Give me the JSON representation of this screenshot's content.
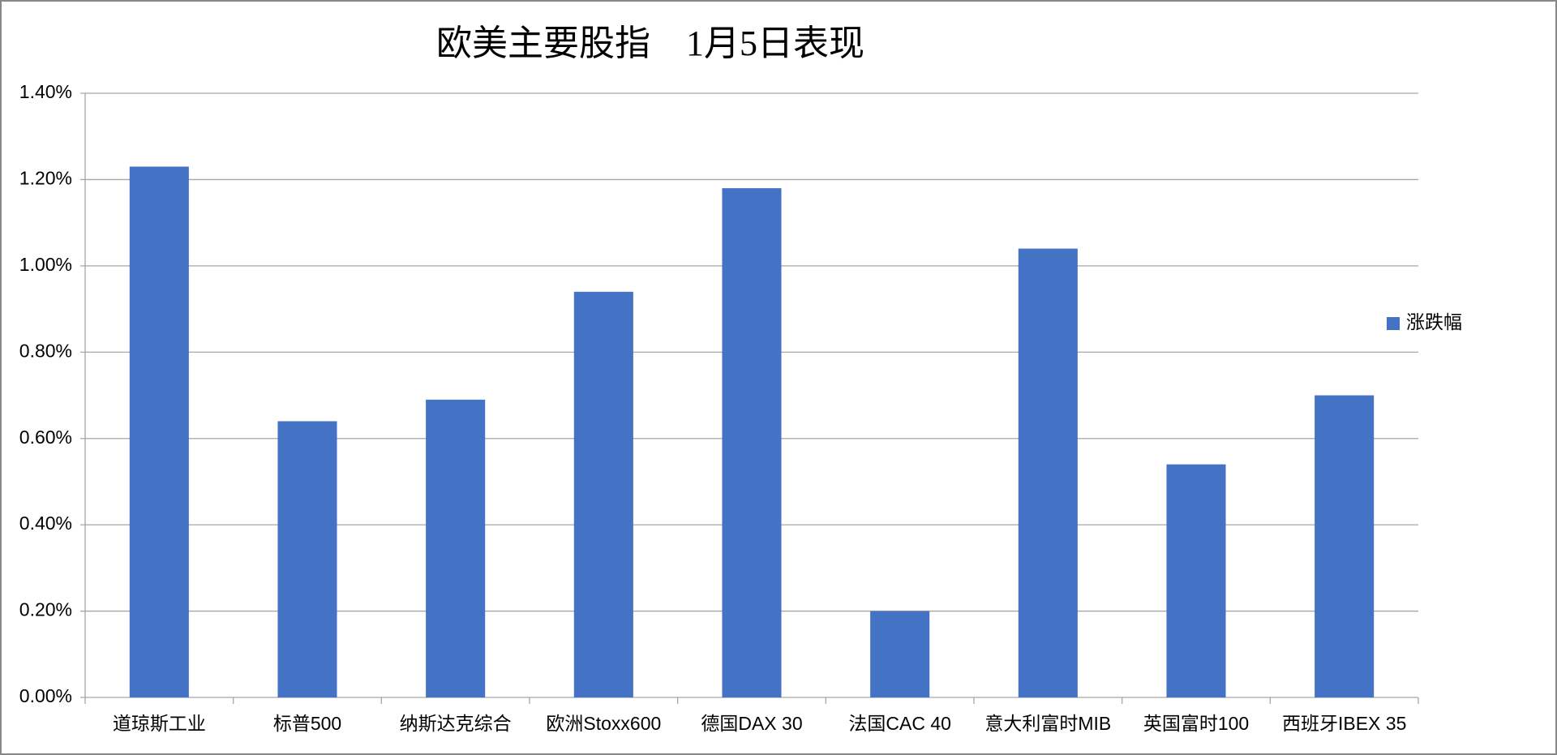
{
  "chart_data": {
    "type": "bar",
    "title": "欧美主要股指　1月5日表现",
    "categories": [
      "道琼斯工业",
      "标普500",
      "纳斯达克综合",
      "欧洲Stoxx600",
      "德国DAX 30",
      "法国CAC 40",
      "意大利富时MIB",
      "英国富时100",
      "西班牙IBEX 35"
    ],
    "series": [
      {
        "name": "涨跌幅",
        "color": "#4472c4",
        "values": [
          1.23,
          0.64,
          0.69,
          0.94,
          1.18,
          0.2,
          1.04,
          0.54,
          0.7
        ]
      }
    ],
    "ylim": [
      0,
      1.4
    ],
    "yticks": [
      {
        "value": 0,
        "label": "0.00%"
      },
      {
        "value": 0.2,
        "label": "0.20%"
      },
      {
        "value": 0.4,
        "label": "0.40%"
      },
      {
        "value": 0.6,
        "label": "0.60%"
      },
      {
        "value": 0.8,
        "label": "0.80%"
      },
      {
        "value": 1.0,
        "label": "1.00%"
      },
      {
        "value": 1.2,
        "label": "1.20%"
      },
      {
        "value": 1.4,
        "label": "1.40%"
      }
    ],
    "grid": true,
    "legend": "right"
  }
}
